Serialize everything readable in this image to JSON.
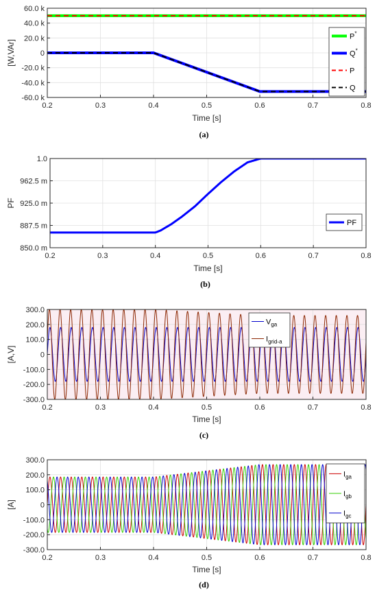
{
  "chart_data": [
    {
      "id": "a",
      "type": "line",
      "caption": "(a)",
      "xlabel": "Time [s]",
      "ylabel": "[W,VAr]",
      "xlim": [
        0.2,
        0.8
      ],
      "ylim": [
        -60000,
        60000
      ],
      "xticks": [
        0.2,
        0.3,
        0.4,
        0.5,
        0.6,
        0.7,
        0.8
      ],
      "xtick_labels": [
        "0.2",
        "0.3",
        "0.4",
        "0.5",
        "0.6",
        "0.7",
        "0.8"
      ],
      "yticks": [
        -60000,
        -40000,
        -20000,
        0,
        20000,
        40000,
        60000
      ],
      "ytick_labels": [
        "-60.0 k",
        "-40.0 k",
        "-20.0 k",
        "0",
        "20.0 k",
        "40.0 k",
        "60.0 k"
      ],
      "grid": true,
      "legend_position": "right",
      "series": [
        {
          "name": "P",
          "sup": "*",
          "color": "#00ff00",
          "dash": "solid",
          "width": 4,
          "x": [
            0.2,
            0.8
          ],
          "y": [
            50000,
            50000
          ]
        },
        {
          "name": "Q",
          "sup": "*",
          "color": "#0000ff",
          "dash": "solid",
          "width": 4,
          "x": [
            0.2,
            0.4,
            0.6,
            0.8
          ],
          "y": [
            0,
            0,
            -52000,
            -52000
          ]
        },
        {
          "name": "P",
          "color": "#ff0000",
          "dash": "dashed",
          "width": 2,
          "x": [
            0.2,
            0.8
          ],
          "y": [
            50000,
            50000
          ]
        },
        {
          "name": "Q",
          "color": "#000000",
          "dash": "dashed",
          "width": 2,
          "x": [
            0.2,
            0.4,
            0.6,
            0.8
          ],
          "y": [
            0,
            0,
            -52000,
            -52000
          ]
        }
      ]
    },
    {
      "id": "b",
      "type": "line",
      "caption": "(b)",
      "xlabel": "Time [s]",
      "ylabel": "PF",
      "xlim": [
        0.2,
        0.8
      ],
      "ylim": [
        0.85,
        1.0
      ],
      "xticks": [
        0.2,
        0.3,
        0.4,
        0.5,
        0.6,
        0.7,
        0.8
      ],
      "xtick_labels": [
        "0.2",
        "0.3",
        "0.4",
        "0.5",
        "0.6",
        "0.7",
        "0.8"
      ],
      "yticks": [
        0.85,
        0.8875,
        0.925,
        0.9625,
        1.0
      ],
      "ytick_labels": [
        "850.0 m",
        "887.5 m",
        "925.0 m",
        "962.5 m",
        "1.0"
      ],
      "grid": true,
      "legend_position": "bottom-right",
      "series": [
        {
          "name": "PF",
          "color": "#0000ff",
          "width": 3,
          "x": [
            0.2,
            0.4,
            0.41,
            0.43,
            0.45,
            0.475,
            0.5,
            0.525,
            0.55,
            0.575,
            0.6,
            0.8
          ],
          "y": [
            0.8755,
            0.8755,
            0.879,
            0.8895,
            0.902,
            0.9195,
            0.9405,
            0.9605,
            0.9785,
            0.9935,
            1.0,
            1.0
          ]
        }
      ]
    },
    {
      "id": "c",
      "type": "line",
      "caption": "(c)",
      "xlabel": "Time [s]",
      "ylabel": "[A,V]",
      "xlim": [
        0.2,
        0.8
      ],
      "ylim": [
        -300,
        300
      ],
      "xticks": [
        0.2,
        0.3,
        0.4,
        0.5,
        0.6,
        0.7,
        0.8
      ],
      "xtick_labels": [
        "0.2",
        "0.3",
        "0.4",
        "0.5",
        "0.6",
        "0.7",
        "0.8"
      ],
      "yticks": [
        -300,
        -200,
        -100,
        0,
        100,
        200,
        300
      ],
      "ytick_labels": [
        "-300.0",
        "-200.0",
        "-100.0",
        "0",
        "100.0",
        "200.0",
        "300.0"
      ],
      "grid": true,
      "legend_position": "top-center",
      "frequency_hz": 50,
      "series": [
        {
          "name": "V",
          "sub": "ga",
          "color": "#0000cc",
          "amplitude": {
            "x": [
              0.2,
              0.8
            ],
            "y": [
              180,
              180
            ]
          },
          "phase_deg": 0
        },
        {
          "name": "I",
          "sub": "grid-a",
          "color": "#8b2500",
          "amplitude": {
            "x": [
              0.2,
              0.4,
              0.6,
              0.8
            ],
            "y": [
              300,
              300,
              260,
              260
            ]
          },
          "phase_deg": 18
        }
      ]
    },
    {
      "id": "d",
      "type": "line",
      "caption": "(d)",
      "xlabel": "Time [s]",
      "ylabel": "[A]",
      "xlim": [
        0.2,
        0.8
      ],
      "ylim": [
        -300,
        300
      ],
      "xticks": [
        0.2,
        0.3,
        0.4,
        0.5,
        0.6,
        0.7,
        0.8
      ],
      "xtick_labels": [
        "0.2",
        "0.3",
        "0.4",
        "0.5",
        "0.6",
        "0.7",
        "0.8"
      ],
      "yticks": [
        -300,
        -200,
        -100,
        0,
        100,
        200,
        300
      ],
      "ytick_labels": [
        "-300.0",
        "-200.0",
        "-100.0",
        "0",
        "100.0",
        "200.0",
        "300.0"
      ],
      "grid": true,
      "legend_position": "right",
      "frequency_hz": 50,
      "series": [
        {
          "name": "I",
          "sub": "ga",
          "color": "#cc0000",
          "amplitude": {
            "x": [
              0.2,
              0.4,
              0.6,
              0.8
            ],
            "y": [
              185,
              185,
              268,
              268
            ]
          },
          "phase_deg": 0
        },
        {
          "name": "I",
          "sub": "gb",
          "color": "#33cc00",
          "amplitude": {
            "x": [
              0.2,
              0.4,
              0.6,
              0.8
            ],
            "y": [
              185,
              185,
              268,
              268
            ]
          },
          "phase_deg": -120
        },
        {
          "name": "I",
          "sub": "gc",
          "color": "#0000cc",
          "amplitude": {
            "x": [
              0.2,
              0.4,
              0.6,
              0.8
            ],
            "y": [
              185,
              185,
              268,
              268
            ]
          },
          "phase_deg": 120
        }
      ]
    }
  ]
}
